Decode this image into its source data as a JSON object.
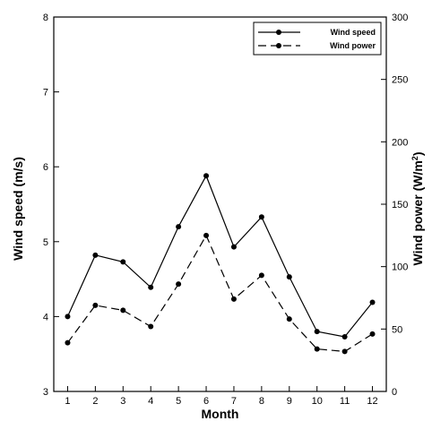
{
  "chart_data": {
    "type": "line",
    "xlabel": "Month",
    "ylabel_left": "Wind speed (m/s)",
    "ylabel_right": {
      "main": "Wind power (W/m",
      "sup": "2",
      "close": ")"
    },
    "x": [
      1,
      2,
      3,
      4,
      5,
      6,
      7,
      8,
      9,
      10,
      11,
      12
    ],
    "xlim": [
      0.5,
      12.5
    ],
    "ylim_left": [
      3,
      8
    ],
    "ylim_right": [
      0,
      300
    ],
    "yticks_left": [
      3,
      4,
      5,
      6,
      7,
      8
    ],
    "yticks_right": [
      0,
      50,
      100,
      150,
      200,
      250,
      300
    ],
    "legend_position": "top-right",
    "grid": false,
    "series": [
      {
        "name": "Wind speed",
        "axis": "left",
        "style": "solid",
        "color": "#000000",
        "values": [
          4.0,
          4.82,
          4.73,
          4.39,
          5.2,
          5.88,
          4.93,
          5.33,
          4.53,
          3.8,
          3.73,
          4.19
        ]
      },
      {
        "name": "Wind power",
        "axis": "right",
        "style": "dashed",
        "color": "#000000",
        "values": [
          39,
          69,
          65,
          52,
          86,
          125,
          74,
          93,
          58,
          34,
          32,
          46
        ]
      }
    ]
  }
}
